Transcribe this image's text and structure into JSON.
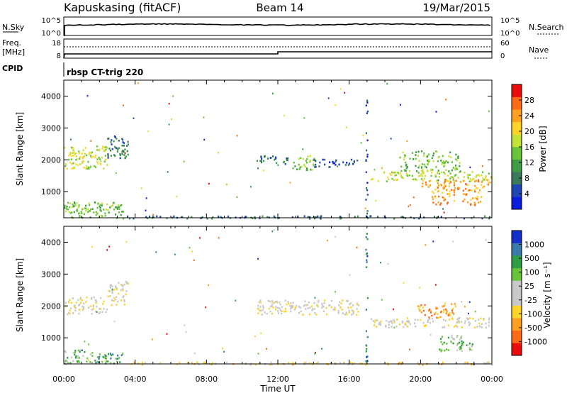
{
  "header": {
    "station": "Kapuskasing (fitACF)",
    "beam": "Beam 14",
    "date": "19/Mar/2015"
  },
  "strips": {
    "nsky_label": "N.Sky",
    "nsky_ticks": [
      "10^5",
      "10^0"
    ],
    "nsearch_ticks": [
      "10^5",
      "10^0"
    ],
    "nsearch_label": "N.Search",
    "freq_label": "Freq.",
    "freq_unit": "[MHz]",
    "freq_ticks": [
      "18",
      "8"
    ],
    "nave_ticks": [
      "60",
      "0"
    ],
    "nave_label": "Nave",
    "cpid_label": "CPID",
    "cpid_value": "rbsp CT-trig 220"
  },
  "chart_data": [
    {
      "type": "heatmap",
      "panel": "power",
      "ylabel": "Slant Range [km]",
      "xlabel": "Time UT",
      "ylim": [
        180,
        4500
      ],
      "yticks": [
        "4000",
        "3000",
        "2000",
        "1000"
      ],
      "xlim_hours": [
        0,
        24
      ],
      "xticks": [
        "00:00",
        "04:00",
        "08:00",
        "12:00",
        "16:00",
        "20:00",
        "00:00"
      ],
      "colorbar": {
        "label": "Power [dB]",
        "tick_labels": [
          "28",
          "24",
          "20",
          "16",
          "12",
          "8",
          "4"
        ],
        "colors": [
          "#0a1edc",
          "#2046b4",
          "#3a7a5a",
          "#3e9c44",
          "#68c438",
          "#c4e23a",
          "#ffd42a",
          "#ffa020",
          "#ff6a18",
          "#e80c0c"
        ]
      },
      "echo_regions": [
        {
          "t0": 0.0,
          "t1": 2.4,
          "r0": 1750,
          "r1": 2450,
          "level": 5
        },
        {
          "t0": 2.4,
          "t1": 3.6,
          "r0": 2050,
          "r1": 2800,
          "level": 2
        },
        {
          "t0": 0.0,
          "t1": 3.3,
          "r0": 180,
          "r1": 700,
          "level": 4
        },
        {
          "t0": 3.3,
          "t1": 10.0,
          "r0": 180,
          "r1": 260,
          "level": 2
        },
        {
          "t0": 10.0,
          "t1": 24.0,
          "r0": 180,
          "r1": 260,
          "level": 2
        },
        {
          "t0": 10.8,
          "t1": 12.6,
          "r0": 1850,
          "r1": 2150,
          "level": 2
        },
        {
          "t0": 12.8,
          "t1": 14.0,
          "r0": 1700,
          "r1": 2150,
          "level": 4
        },
        {
          "t0": 14.0,
          "t1": 16.5,
          "r0": 1800,
          "r1": 2050,
          "level": 1
        },
        {
          "t0": 16.9,
          "t1": 17.0,
          "r0": 200,
          "r1": 4300,
          "level": 1
        },
        {
          "t0": 17.2,
          "t1": 24.0,
          "r0": 1350,
          "r1": 1650,
          "level": 5
        },
        {
          "t0": 19.8,
          "t1": 24.0,
          "r0": 1150,
          "r1": 1400,
          "level": 7
        },
        {
          "t0": 18.8,
          "t1": 22.2,
          "r0": 1650,
          "r1": 2300,
          "level": 4
        },
        {
          "t0": 20.6,
          "t1": 23.4,
          "r0": 600,
          "r1": 1150,
          "level": 7
        }
      ]
    },
    {
      "type": "heatmap",
      "panel": "velocity",
      "ylabel": "Slant Range [km]",
      "xlabel": "Time UT",
      "ylim": [
        180,
        4500
      ],
      "yticks": [
        "4000",
        "3000",
        "2000",
        "1000"
      ],
      "xlim_hours": [
        0,
        24
      ],
      "xticks": [
        "00:00",
        "04:00",
        "08:00",
        "12:00",
        "16:00",
        "20:00",
        "00:00"
      ],
      "colorbar": {
        "label": "Velocity [m s⁻¹]",
        "tick_labels": [
          "1000",
          "500",
          "100",
          "25",
          "-25",
          "-100",
          "-500",
          "-1000"
        ],
        "colors": [
          "#e80c0c",
          "#ff6a18",
          "#ffa020",
          "#ffd42a",
          "#c8c8c8",
          "#c8c8c8",
          "#68c438",
          "#2e9e44",
          "#3a7aaa",
          "#1430c8"
        ]
      },
      "echo_regions": [
        {
          "t0": 0.0,
          "t1": 2.4,
          "r0": 1750,
          "r1": 2300,
          "level": 4
        },
        {
          "t0": 2.4,
          "t1": 3.6,
          "r0": 2050,
          "r1": 2800,
          "level": 4
        },
        {
          "t0": 0.0,
          "t1": 1.6,
          "r0": 200,
          "r1": 650,
          "level": 6
        },
        {
          "t0": 1.6,
          "t1": 3.3,
          "r0": 200,
          "r1": 600,
          "level": 7
        },
        {
          "t0": 3.3,
          "t1": 24.0,
          "r0": 180,
          "r1": 260,
          "level": 3
        },
        {
          "t0": 10.8,
          "t1": 16.5,
          "r0": 1750,
          "r1": 2200,
          "level": 4
        },
        {
          "t0": 16.9,
          "t1": 17.0,
          "r0": 200,
          "r1": 4300,
          "level": 8
        },
        {
          "t0": 17.2,
          "t1": 24.0,
          "r0": 1350,
          "r1": 1650,
          "level": 4
        },
        {
          "t0": 19.8,
          "t1": 22.0,
          "r0": 1650,
          "r1": 2100,
          "level": 2
        },
        {
          "t0": 21.0,
          "t1": 23.0,
          "r0": 600,
          "r1": 1100,
          "level": 6
        }
      ]
    }
  ]
}
